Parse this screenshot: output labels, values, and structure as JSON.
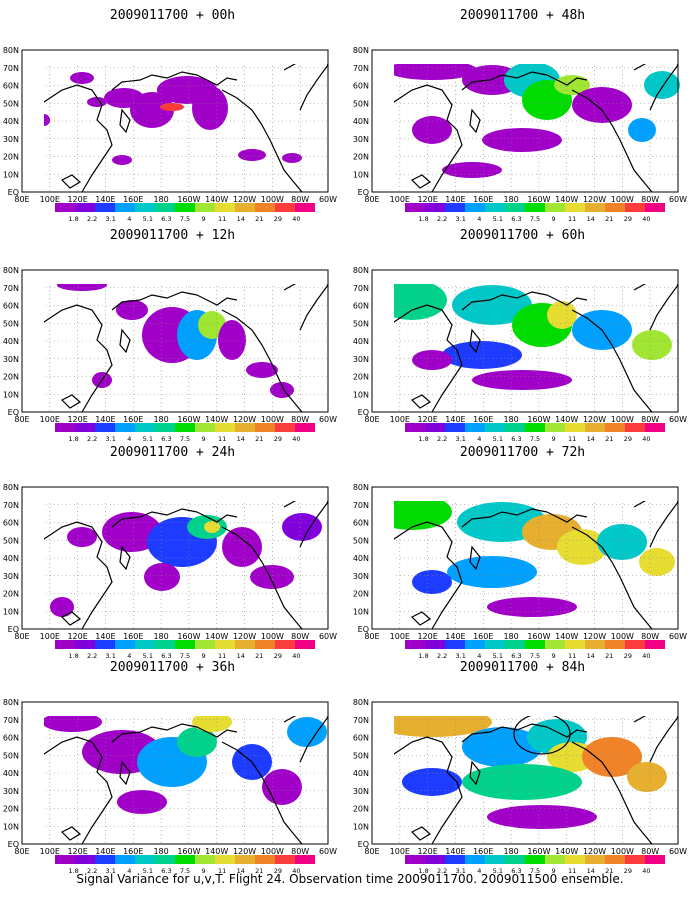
{
  "figure": {
    "caption": "Signal Variance for u,v,T. Flight 24. Observation time 2009011700. 2009011500 ensemble."
  },
  "map": {
    "lat_labels": [
      "80N",
      "70N",
      "60N",
      "50N",
      "40N",
      "30N",
      "20N",
      "10N",
      "EQ"
    ],
    "lon_labels": [
      "80E",
      "100E",
      "120E",
      "140E",
      "160E",
      "180",
      "160W",
      "140W",
      "120W",
      "100W",
      "80W",
      "60W"
    ]
  },
  "colorbar": {
    "levels": [
      "1.8",
      "2.2",
      "3.1",
      "4",
      "5.1",
      "6.3",
      "7.5",
      "9",
      "11",
      "14",
      "21",
      "29",
      "40"
    ],
    "colors": [
      "#a000c8",
      "#8200dc",
      "#1e3cff",
      "#00a0ff",
      "#00c8c8",
      "#00d28c",
      "#00dc00",
      "#a0e632",
      "#e6dc32",
      "#e6af2d",
      "#f08228",
      "#fa3c3c",
      "#f00082"
    ]
  },
  "panels": [
    {
      "title": "2009011700 + 00h"
    },
    {
      "title": "2009011700 + 12h"
    },
    {
      "title": "2009011700 + 24h"
    },
    {
      "title": "2009011700 + 36h"
    },
    {
      "title": "2009011700 + 48h"
    },
    {
      "title": "2009011700 + 60h"
    },
    {
      "title": "2009011700 + 72h"
    },
    {
      "title": "2009011700 + 84h"
    }
  ]
}
